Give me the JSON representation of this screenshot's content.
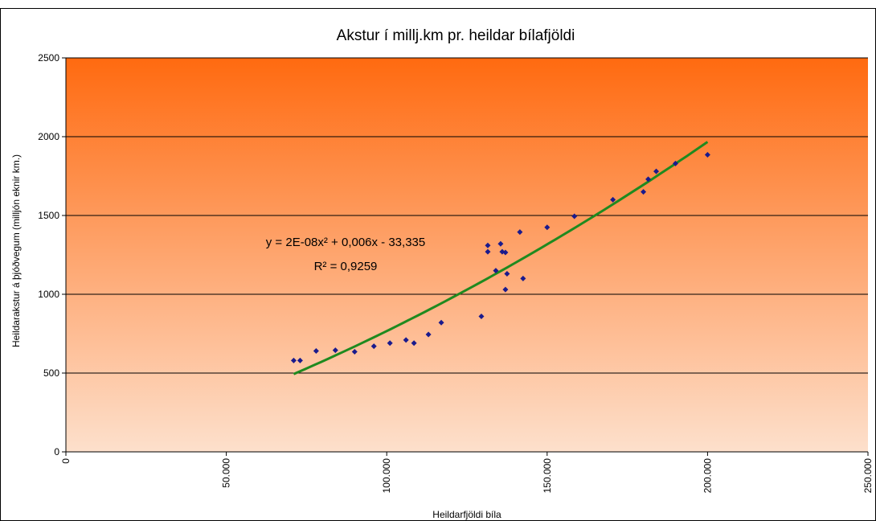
{
  "chart_data": {
    "type": "scatter",
    "title": "Akstur í millj.km pr. heildar bílafjöldi",
    "xlabel": "Heildarfjöldi bíla",
    "ylabel": "Heildarakstur á þjóðvegum (milljón eknir km.)",
    "xlim": [
      0,
      250000
    ],
    "ylim": [
      0,
      2500
    ],
    "x_ticks": [
      0,
      50000,
      100000,
      150000,
      200000,
      250000
    ],
    "x_tick_labels": [
      "0",
      "50.000",
      "100.000",
      "150.000",
      "200.000",
      "250.000"
    ],
    "y_ticks": [
      0,
      500,
      1000,
      1500,
      2000,
      2500
    ],
    "y_tick_labels": [
      "0",
      "500",
      "1000",
      "1500",
      "2000",
      "2500"
    ],
    "grid": "horizontal",
    "colors": {
      "background_top": "#ff6a10",
      "background_bottom": "#fde0cc",
      "points": "#1a1a8c",
      "trendline": "#1f8a1f"
    },
    "points": [
      {
        "x": 71000,
        "y": 580
      },
      {
        "x": 73000,
        "y": 580
      },
      {
        "x": 78000,
        "y": 640
      },
      {
        "x": 84000,
        "y": 645
      },
      {
        "x": 90000,
        "y": 635
      },
      {
        "x": 96000,
        "y": 670
      },
      {
        "x": 101000,
        "y": 690
      },
      {
        "x": 106000,
        "y": 710
      },
      {
        "x": 108500,
        "y": 690
      },
      {
        "x": 113000,
        "y": 745
      },
      {
        "x": 117000,
        "y": 820
      },
      {
        "x": 129500,
        "y": 860
      },
      {
        "x": 131500,
        "y": 1270
      },
      {
        "x": 131500,
        "y": 1310
      },
      {
        "x": 134000,
        "y": 1150
      },
      {
        "x": 135500,
        "y": 1320
      },
      {
        "x": 136000,
        "y": 1270
      },
      {
        "x": 137000,
        "y": 1265
      },
      {
        "x": 137000,
        "y": 1030
      },
      {
        "x": 137500,
        "y": 1130
      },
      {
        "x": 141500,
        "y": 1395
      },
      {
        "x": 142500,
        "y": 1100
      },
      {
        "x": 150000,
        "y": 1425
      },
      {
        "x": 158500,
        "y": 1495
      },
      {
        "x": 170500,
        "y": 1600
      },
      {
        "x": 180000,
        "y": 1650
      },
      {
        "x": 181500,
        "y": 1730
      },
      {
        "x": 184000,
        "y": 1780
      },
      {
        "x": 190000,
        "y": 1830
      },
      {
        "x": 200000,
        "y": 1885
      }
    ],
    "trendline": {
      "type": "polynomial",
      "coefficients": {
        "a": 2e-08,
        "b": 0.006,
        "c": -33.335
      },
      "x_range": [
        71000,
        200000
      ],
      "equation_label": "y = 2E-08x² + 0,006x - 33,335",
      "r2_label": "R² = 0,9259"
    }
  }
}
